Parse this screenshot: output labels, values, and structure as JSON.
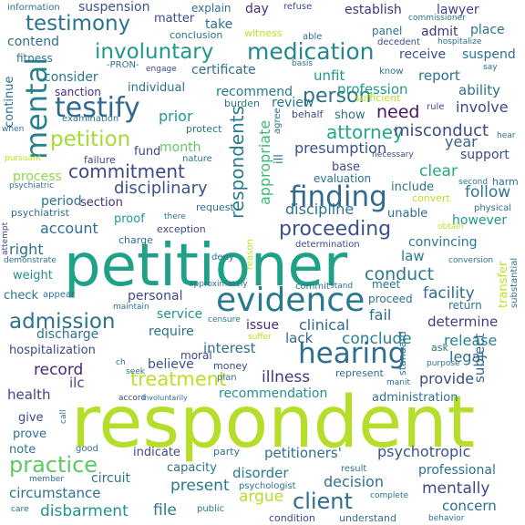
{
  "words": [
    {
      "text": "respondent",
      "color": "#b5de2b"
    },
    {
      "text": "petitioner",
      "color": "#1fa187"
    },
    {
      "text": "evidence",
      "color": "#2a788e"
    },
    {
      "text": "hearing",
      "color": "#2e6e8e"
    },
    {
      "text": "mental",
      "color": "#26828e"
    },
    {
      "text": "testify",
      "color": "#31688e"
    },
    {
      "text": "finding",
      "color": "#306a8e"
    },
    {
      "text": "admission",
      "color": "#2c728e"
    },
    {
      "text": "medication",
      "color": "#24868e"
    },
    {
      "text": "involuntary",
      "color": "#1f9a8a"
    },
    {
      "text": "petition",
      "color": "#a5db36"
    },
    {
      "text": "testimony",
      "color": "#2c728e"
    },
    {
      "text": "commitment",
      "color": "#3e4989"
    },
    {
      "text": "proceeding",
      "color": "#3b528b"
    },
    {
      "text": "treatment",
      "color": "#bddf26"
    },
    {
      "text": "person",
      "color": "#2c728e"
    },
    {
      "text": "practice",
      "color": "#5ec962"
    },
    {
      "text": "client",
      "color": "#2e6e8e"
    },
    {
      "text": "attorney",
      "color": "#22a884"
    },
    {
      "text": "respondents",
      "color": "#287c8e"
    },
    {
      "text": "appropriate",
      "color": "#3aba76"
    },
    {
      "text": "disciplinary",
      "color": "#3b528b"
    },
    {
      "text": "conduct",
      "color": "#2a788e"
    },
    {
      "text": "need",
      "color": "#471365"
    },
    {
      "text": "record",
      "color": "#482979"
    },
    {
      "text": "health",
      "color": "#414487"
    },
    {
      "text": "illness",
      "color": "#46337e"
    },
    {
      "text": "release",
      "color": "#26828e"
    },
    {
      "text": "present",
      "color": "#2a788e"
    },
    {
      "text": "misconduct",
      "color": "#3e4989"
    },
    {
      "text": "presumption",
      "color": "#3b528b"
    },
    {
      "text": "psychotropic",
      "color": "#3b528b"
    },
    {
      "text": "interest",
      "color": "#2c728e"
    },
    {
      "text": "clear",
      "color": "#22a884"
    },
    {
      "text": "mentally",
      "color": "#3e4989"
    },
    {
      "text": "circumstance",
      "color": "#2c728e"
    },
    {
      "text": "disbarment",
      "color": "#21918c"
    },
    {
      "text": "facility",
      "color": "#2e6e8e"
    },
    {
      "text": "determine",
      "color": "#433d84"
    },
    {
      "text": "fail",
      "color": "#2e6e8e"
    },
    {
      "text": "prior",
      "color": "#1f9a8a"
    },
    {
      "text": "clinical",
      "color": "#31688e"
    },
    {
      "text": "lack",
      "color": "#31688e"
    },
    {
      "text": "conclude",
      "color": "#26828e"
    },
    {
      "text": "decision",
      "color": "#2c728e"
    },
    {
      "text": "argue",
      "color": "#b5de2b"
    },
    {
      "text": "disorder",
      "color": "#2a788e"
    },
    {
      "text": "file",
      "color": "#2a788e"
    },
    {
      "text": "year",
      "color": "#34618d"
    },
    {
      "text": "follow",
      "color": "#2a788e"
    },
    {
      "text": "discipline",
      "color": "#2c728e"
    },
    {
      "text": "account",
      "color": "#2e6e8e"
    },
    {
      "text": "right",
      "color": "#2c728e"
    },
    {
      "text": "convincing",
      "color": "#2a788e"
    },
    {
      "text": "law",
      "color": "#2a788e"
    },
    {
      "text": "recommendation",
      "color": "#21918c"
    },
    {
      "text": "concern",
      "color": "#2e6e8e"
    },
    {
      "text": "subject",
      "color": "#31688e"
    },
    {
      "text": "legal",
      "color": "#2e6e8e"
    },
    {
      "text": "provide",
      "color": "#3e4989"
    },
    {
      "text": "discharge",
      "color": "#2c728e"
    },
    {
      "text": "hospitalization",
      "color": "#3e4989"
    },
    {
      "text": "service",
      "color": "#21918c"
    },
    {
      "text": "issue",
      "color": "#472d7b"
    },
    {
      "text": "require",
      "color": "#2c728e"
    },
    {
      "text": "believe",
      "color": "#3b528b"
    },
    {
      "text": "personal",
      "color": "#3e4989"
    },
    {
      "text": "consider",
      "color": "#2a788e"
    },
    {
      "text": "certificate",
      "color": "#2e6e8e"
    },
    {
      "text": "unfit",
      "color": "#1f9a8a"
    },
    {
      "text": "profession",
      "color": "#1f9a8a"
    },
    {
      "text": "report",
      "color": "#2c728e"
    },
    {
      "text": "ability",
      "color": "#2e6e8e"
    },
    {
      "text": "involve",
      "color": "#3e4989"
    },
    {
      "text": "establish",
      "color": "#46337e"
    },
    {
      "text": "lawyer",
      "color": "#414487"
    },
    {
      "text": "suspension",
      "color": "#3b528b"
    },
    {
      "text": "matter",
      "color": "#3e4989"
    },
    {
      "text": "take",
      "color": "#2c728e"
    },
    {
      "text": "day",
      "color": "#472d7b"
    },
    {
      "text": "admit",
      "color": "#46337e"
    },
    {
      "text": "place",
      "color": "#2c728e"
    },
    {
      "text": "receive",
      "color": "#3b528b"
    },
    {
      "text": "suspend",
      "color": "#2c728e"
    },
    {
      "text": "contend",
      "color": "#2c728e"
    },
    {
      "text": "review",
      "color": "#2c728e"
    },
    {
      "text": "recommend",
      "color": "#2a788e"
    },
    {
      "text": "individual",
      "color": "#2c728e"
    },
    {
      "text": "month",
      "color": "#5ec962"
    },
    {
      "text": "fund",
      "color": "#3e4989"
    },
    {
      "text": "process",
      "color": "#8fd744"
    },
    {
      "text": "period",
      "color": "#2c728e"
    },
    {
      "text": "section",
      "color": "#472d7b"
    },
    {
      "text": "proof",
      "color": "#1f9a8a"
    },
    {
      "text": "however",
      "color": "#1f9a8a"
    },
    {
      "text": "include",
      "color": "#2c728e"
    },
    {
      "text": "base",
      "color": "#3e4989"
    },
    {
      "text": "support",
      "color": "#3e4989"
    },
    {
      "text": "unable",
      "color": "#2c728e"
    },
    {
      "text": "continue",
      "color": "#2e6e8e"
    },
    {
      "text": "weight",
      "color": "#21918c"
    },
    {
      "text": "check",
      "color": "#2c728e"
    },
    {
      "text": "give",
      "color": "#3e4989"
    },
    {
      "text": "prove",
      "color": "#2c728e"
    },
    {
      "text": "note",
      "color": "#2c728e"
    },
    {
      "text": "indicate",
      "color": "#3e4989"
    },
    {
      "text": "capacity",
      "color": "#2c728e"
    },
    {
      "text": "petitioners'",
      "color": "#2c728e"
    },
    {
      "text": "professional",
      "color": "#2c728e"
    },
    {
      "text": "administration",
      "color": "#2c728e"
    },
    {
      "text": "circuit",
      "color": "#2c728e"
    },
    {
      "text": "ilc",
      "color": "#3e4989"
    },
    {
      "text": "show",
      "color": "#2c728e"
    },
    {
      "text": "evaluation",
      "color": "#2c728e"
    },
    {
      "text": "fitness",
      "color": "#2c728e"
    },
    {
      "text": "sanction",
      "color": "#472d7b"
    },
    {
      "text": "information",
      "color": "#2c728e"
    },
    {
      "text": "explain",
      "color": "#2c728e"
    },
    {
      "text": "refuse",
      "color": "#3e4989"
    },
    {
      "text": "conclusion",
      "color": "#2c728e"
    },
    {
      "text": "witness",
      "color": "#bddf26"
    },
    {
      "text": "commissioner",
      "color": "#2c728e"
    },
    {
      "text": "panel",
      "color": "#2c728e"
    },
    {
      "text": "decedent",
      "color": "#3e4989"
    },
    {
      "text": "hospitalize",
      "color": "#2c728e"
    },
    {
      "text": "able",
      "color": "#2c728e"
    },
    {
      "text": "-PRON-",
      "color": "#2c728e"
    },
    {
      "text": "engage",
      "color": "#3e4989"
    },
    {
      "text": "basis",
      "color": "#2c728e"
    },
    {
      "text": "say",
      "color": "#2c728e"
    },
    {
      "text": "know",
      "color": "#2c728e"
    },
    {
      "text": "sufficient",
      "color": "#bddf26"
    },
    {
      "text": "examination",
      "color": "#2c728e"
    },
    {
      "text": "burden",
      "color": "#2c728e"
    },
    {
      "text": "behalf",
      "color": "#3e4989"
    },
    {
      "text": "agree",
      "color": "#2c728e"
    },
    {
      "text": "rule",
      "color": "#3e4989"
    },
    {
      "text": "when",
      "color": "#2c728e"
    },
    {
      "text": "protect",
      "color": "#2c728e"
    },
    {
      "text": "hear",
      "color": "#2c728e"
    },
    {
      "text": "pursuant",
      "color": "#bddf26"
    },
    {
      "text": "psychiatric",
      "color": "#2c728e"
    },
    {
      "text": "failure",
      "color": "#3e4989"
    },
    {
      "text": "nature",
      "color": "#2c728e"
    },
    {
      "text": "ill",
      "color": "#2c728e"
    },
    {
      "text": "necessary",
      "color": "#3e4989"
    },
    {
      "text": "second",
      "color": "#2c728e"
    },
    {
      "text": "harm",
      "color": "#2c728e"
    },
    {
      "text": "convert",
      "color": "#bddf26"
    },
    {
      "text": "physical",
      "color": "#2c728e"
    },
    {
      "text": "obtain",
      "color": "#bddf26"
    },
    {
      "text": "psychiatrist",
      "color": "#2c728e"
    },
    {
      "text": "there",
      "color": "#2c728e"
    },
    {
      "text": "request",
      "color": "#2c728e"
    },
    {
      "text": "exception",
      "color": "#3e4989"
    },
    {
      "text": "attempt",
      "color": "#3e4989"
    },
    {
      "text": "charge",
      "color": "#2c728e"
    },
    {
      "text": "determination",
      "color": "#3e4989"
    },
    {
      "text": "reason",
      "color": "#bddf26"
    },
    {
      "text": "demonstrate",
      "color": "#2c728e"
    },
    {
      "text": "appear",
      "color": "#2c728e"
    },
    {
      "text": "deny",
      "color": "#2c728e"
    },
    {
      "text": "approximately",
      "color": "#2c728e"
    },
    {
      "text": "commit",
      "color": "#2c728e"
    },
    {
      "text": "stand",
      "color": "#2c728e"
    },
    {
      "text": "meet",
      "color": "#2c728e"
    },
    {
      "text": "proceed",
      "color": "#2c728e"
    },
    {
      "text": "return",
      "color": "#2c728e"
    },
    {
      "text": "conversion",
      "color": "#2c728e"
    },
    {
      "text": "transfer",
      "color": "#bddf26"
    },
    {
      "text": "substantial",
      "color": "#2c728e"
    },
    {
      "text": "maintain",
      "color": "#2c728e"
    },
    {
      "text": "censure",
      "color": "#2c728e"
    },
    {
      "text": "suffer",
      "color": "#bddf26"
    },
    {
      "text": "ask",
      "color": "#2c728e"
    },
    {
      "text": "purpose",
      "color": "#2c728e"
    },
    {
      "text": "moral",
      "color": "#3e4989"
    },
    {
      "text": "seek",
      "color": "#2c728e"
    },
    {
      "text": "ch",
      "color": "#2c728e"
    },
    {
      "text": "money",
      "color": "#3e4989"
    },
    {
      "text": "plan",
      "color": "#2c728e"
    },
    {
      "text": "represent",
      "color": "#2c728e"
    },
    {
      "text": "manit",
      "color": "#2c728e"
    },
    {
      "text": "accord",
      "color": "#3e4989"
    },
    {
      "text": "involuntarily",
      "color": "#2c728e"
    },
    {
      "text": "call",
      "color": "#2c728e"
    },
    {
      "text": "good",
      "color": "#2c728e"
    },
    {
      "text": "party",
      "color": "#2c728e"
    },
    {
      "text": "result",
      "color": "#2c728e"
    },
    {
      "text": "member",
      "color": "#2c728e"
    },
    {
      "text": "psychologist",
      "color": "#2c728e"
    },
    {
      "text": "public",
      "color": "#2c728e"
    },
    {
      "text": "complete",
      "color": "#2c728e"
    },
    {
      "text": "care",
      "color": "#2c728e"
    },
    {
      "text": "condition",
      "color": "#3e4989"
    },
    {
      "text": "understand",
      "color": "#2c728e"
    },
    {
      "text": "behavior",
      "color": "#2c728e"
    },
    {
      "text": "standard",
      "color": "#2c728e"
    }
  ]
}
